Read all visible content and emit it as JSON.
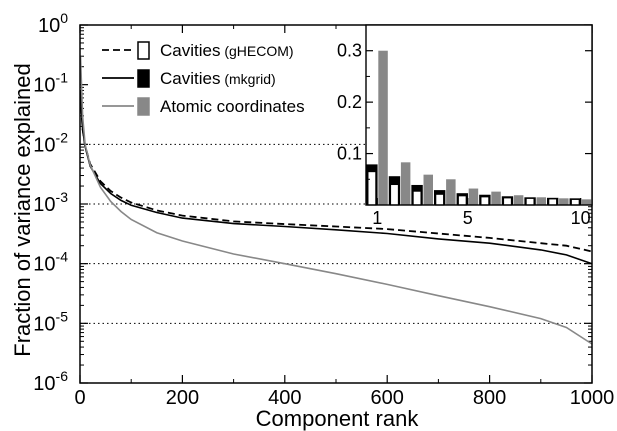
{
  "chart_data": [
    {
      "type": "line",
      "xlabel": "Component rank",
      "ylabel": "Fraction of variance explained",
      "xlim": [
        0,
        1000
      ],
      "ylim": [
        1e-06,
        1
      ],
      "y_scale": "log",
      "x_ticks": [
        0,
        200,
        400,
        600,
        800,
        1000
      ],
      "y_ticks": [
        {
          "value": 1e-06,
          "base": "10",
          "exp": "-6"
        },
        {
          "value": 1e-05,
          "base": "10",
          "exp": "-5"
        },
        {
          "value": 0.0001,
          "base": "10",
          "exp": "-4"
        },
        {
          "value": 0.001,
          "base": "10",
          "exp": "-3"
        },
        {
          "value": 0.01,
          "base": "10",
          "exp": "-2"
        },
        {
          "value": 0.1,
          "base": "10",
          "exp": "-1"
        },
        {
          "value": 1,
          "base": "10",
          "exp": "0"
        }
      ],
      "reference_lines": [
        0.01,
        0.001,
        0.0001,
        1e-05
      ],
      "legend_position": "top-left",
      "series": [
        {
          "name": "Cavities",
          "name_suffix": "(gHECOM)",
          "style": "dashed",
          "color": "#000000",
          "x": [
            1,
            5,
            10,
            20,
            40,
            60,
            80,
            100,
            150,
            200,
            300,
            400,
            500,
            600,
            700,
            800,
            900,
            950,
            1000
          ],
          "y": [
            0.065,
            0.018,
            0.0095,
            0.0047,
            0.0024,
            0.00165,
            0.00128,
            0.00106,
            0.00078,
            0.00064,
            0.00051,
            0.00046,
            0.00042,
            0.00038,
            0.00032,
            0.00027,
            0.00022,
            0.0002,
            0.00016
          ]
        },
        {
          "name": "Cavities",
          "name_suffix": "(mkgrid)",
          "style": "solid",
          "color": "#000000",
          "x": [
            1,
            5,
            10,
            20,
            40,
            60,
            80,
            100,
            150,
            200,
            300,
            400,
            500,
            600,
            700,
            800,
            900,
            950,
            1000
          ],
          "y": [
            0.08,
            0.018,
            0.0092,
            0.0043,
            0.0022,
            0.0015,
            0.00115,
            0.00095,
            0.00072,
            0.00058,
            0.00047,
            0.00042,
            0.00037,
            0.00032,
            0.00026,
            0.00022,
            0.00017,
            0.00014,
            0.0001
          ]
        },
        {
          "name": "Atomic coordinates",
          "name_suffix": "",
          "style": "solid",
          "color": "#888888",
          "x": [
            1,
            5,
            10,
            20,
            40,
            60,
            80,
            100,
            150,
            200,
            300,
            400,
            500,
            600,
            700,
            800,
            900,
            950,
            1000
          ],
          "y": [
            0.3,
            0.03,
            0.01,
            0.0045,
            0.0019,
            0.0011,
            0.00075,
            0.00055,
            0.00033,
            0.00024,
            0.000145,
            0.0001,
            6.8e-05,
            4.5e-05,
            2.9e-05,
            1.9e-05,
            1.2e-05,
            8.5e-06,
            4.5e-06
          ]
        }
      ]
    },
    {
      "type": "bar",
      "position": "inset top-right",
      "ylim": [
        0,
        0.35
      ],
      "xlim": [
        0.5,
        10.5
      ],
      "x_ticks": [
        1,
        5,
        10
      ],
      "y_ticks": [
        "0.1",
        "0.2",
        "0.3"
      ],
      "y_tick_values": [
        0.1,
        0.2,
        0.3
      ],
      "categories": [
        1,
        2,
        3,
        4,
        5,
        6,
        7,
        8,
        9,
        10
      ],
      "series": [
        {
          "name": "Cavities (gHECOM)",
          "fill": "#ffffff",
          "values": [
            0.065,
            0.04,
            0.027,
            0.021,
            0.018,
            0.016,
            0.014,
            0.013,
            0.012,
            0.011
          ]
        },
        {
          "name": "Cavities (mkgrid)",
          "fill": "#000000",
          "values": [
            0.078,
            0.055,
            0.038,
            0.028,
            0.022,
            0.019,
            0.016,
            0.014,
            0.013,
            0.012
          ]
        },
        {
          "name": "Atomic coordinates",
          "fill": "#888888",
          "values": [
            0.3,
            0.083,
            0.059,
            0.05,
            0.032,
            0.026,
            0.019,
            0.015,
            0.013,
            0.011
          ]
        }
      ]
    }
  ]
}
